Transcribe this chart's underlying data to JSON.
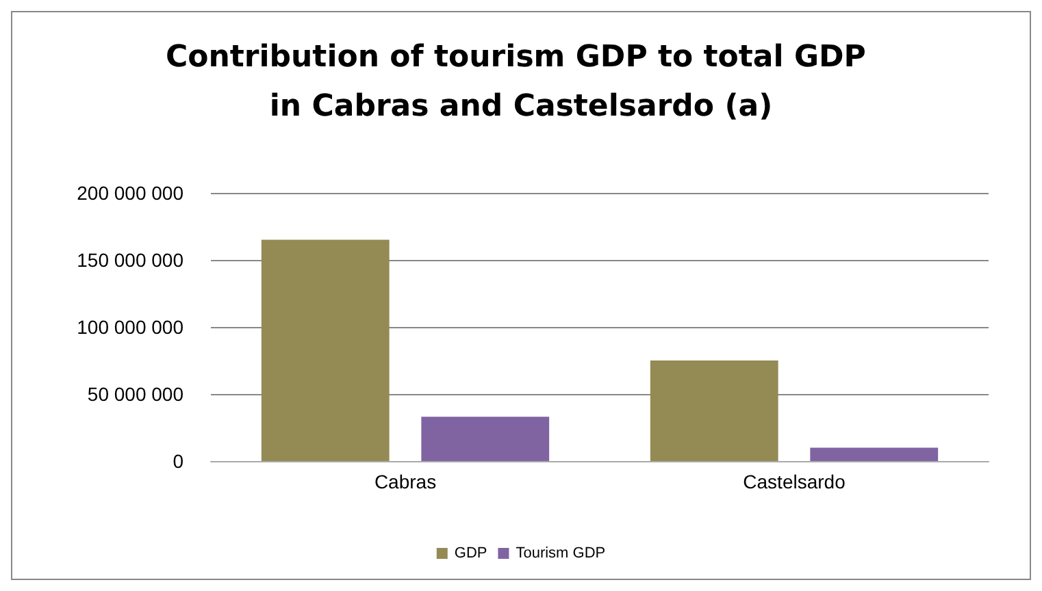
{
  "chart_data": {
    "type": "bar",
    "title": "Contribution of tourism GDP to total GDP in Cabras and Castelsardo (a)",
    "categories": [
      "Cabras",
      "Castelsardo"
    ],
    "series": [
      {
        "name": "GDP",
        "color": "#948a54",
        "values": [
          165000000,
          75000000
        ]
      },
      {
        "name": "Tourism GDP",
        "color": "#8064a2",
        "values": [
          33000000,
          10000000
        ]
      }
    ],
    "ylim": [
      0,
      200000000
    ],
    "yticks": [
      {
        "value": 0,
        "label": "0"
      },
      {
        "value": 50000000,
        "label": "50 000 000"
      },
      {
        "value": 100000000,
        "label": "100 000 000"
      },
      {
        "value": 150000000,
        "label": "150 000 000"
      },
      {
        "value": 200000000,
        "label": "200 000 000"
      }
    ],
    "grid": "y",
    "legend": "bottom"
  }
}
